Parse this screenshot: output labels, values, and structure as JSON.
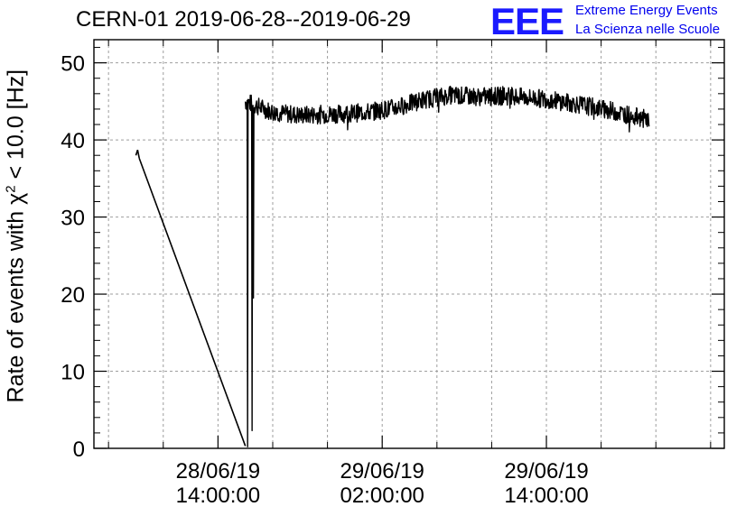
{
  "header": {
    "title": "CERN-01 2019-06-28--2019-06-29",
    "logo_text": "EEE",
    "logo_line1": "Extreme Energy Events",
    "logo_line2": "La Scienza nelle Scuole"
  },
  "colors": {
    "logo": "#1a1aff",
    "line": "#000000",
    "grid": "#9e9e9e"
  },
  "chart_data": {
    "type": "line",
    "title": "CERN-01 2019-06-28--2019-06-29",
    "xlabel": "",
    "ylabel_prefix": "Rate of events with ",
    "ylabel_symbol": "χ",
    "ylabel_superscript": "2",
    "ylabel_suffix": " < 10.0 [Hz]",
    "x_unit": "hours",
    "xlim": [
      "2019-06-28 04:56",
      "2019-06-30 03:00"
    ],
    "ylim": [
      0,
      53
    ],
    "grid": true,
    "x_ticks": [
      {
        "date": "28/06/19",
        "time": "14:00:00",
        "at": "2019-06-28 14:00"
      },
      {
        "date": "29/06/19",
        "time": "02:00:00",
        "at": "2019-06-29 02:00"
      },
      {
        "date": "29/06/19",
        "time": "14:00:00",
        "at": "2019-06-29 14:00"
      }
    ],
    "y_ticks": [
      0,
      10,
      20,
      30,
      40,
      50
    ],
    "series": [
      {
        "name": "",
        "segments": [
          {
            "from": "2019-06-28 08:00",
            "to": "2019-06-28 08:15",
            "values": [
              38.0,
              38.7,
              37.6
            ]
          },
          {
            "from": "2019-06-28 08:15",
            "to": "2019-06-28 16:00",
            "values": [
              37.6,
              0.3
            ]
          }
        ],
        "dips": [
          {
            "at": "2019-06-28 16:10",
            "value": 0.2
          },
          {
            "at": "2019-06-28 16:30",
            "value": 2.3
          },
          {
            "at": "2019-06-28 16:35",
            "value": 19.5
          }
        ],
        "profile": {
          "from": "2019-06-28 16:00",
          "to": "2019-06-29 21:30",
          "noise": 1.2,
          "points": [
            [
              "2019-06-28 16:00",
              45.0
            ],
            [
              "2019-06-28 18:00",
              43.6
            ],
            [
              "2019-06-28 20:00",
              43.2
            ],
            [
              "2019-06-28 23:00",
              43.4
            ],
            [
              "2019-06-29 01:00",
              43.6
            ],
            [
              "2019-06-29 03:00",
              44.2
            ],
            [
              "2019-06-29 05:00",
              45.2
            ],
            [
              "2019-06-29 07:00",
              45.8
            ],
            [
              "2019-06-29 09:00",
              45.6
            ],
            [
              "2019-06-29 11:00",
              45.7
            ],
            [
              "2019-06-29 14:00",
              45.3
            ],
            [
              "2019-06-29 17:00",
              44.4
            ],
            [
              "2019-06-29 19:00",
              43.7
            ],
            [
              "2019-06-29 21:30",
              42.6
            ]
          ]
        }
      }
    ]
  }
}
